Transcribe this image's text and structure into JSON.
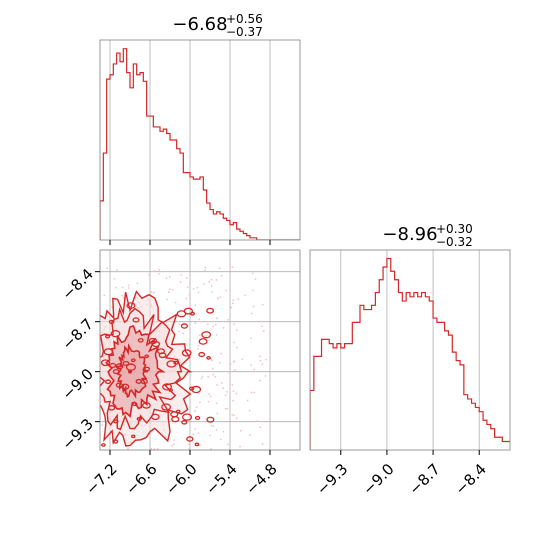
{
  "colors": {
    "series": "#d62728",
    "contour_fill_dark": "#e8a3a4",
    "contour_fill_light": "#f6dede",
    "scatter": "#f0c4c4",
    "grid": "#b0b0b0",
    "axes": "#808080"
  },
  "chart_data": [
    {
      "type": "histogram",
      "panel": "top-left",
      "title": {
        "value": "−6.68",
        "plus": "+0.56",
        "minus": "−0.37"
      },
      "xlim": [
        -7.35,
        -4.35
      ],
      "xticks": [
        -7.2,
        -6.6,
        -6.0,
        -5.4,
        -4.8
      ],
      "xtick_labels_shown": false,
      "grid": true,
      "bin_edges": [
        -7.35,
        -7.3,
        -7.25,
        -7.2,
        -7.15,
        -7.1,
        -7.05,
        -7.0,
        -6.95,
        -6.9,
        -6.85,
        -6.8,
        -6.75,
        -6.7,
        -6.65,
        -6.6,
        -6.55,
        -6.5,
        -6.45,
        -6.4,
        -6.35,
        -6.3,
        -6.25,
        -6.2,
        -6.15,
        -6.1,
        -6.05,
        -6.0,
        -5.95,
        -5.9,
        -5.85,
        -5.8,
        -5.75,
        -5.7,
        -5.65,
        -5.6,
        -5.55,
        -5.5,
        -5.45,
        -5.4,
        -5.35,
        -5.3,
        -5.25,
        -5.2,
        -5.15,
        -5.1,
        -5.05,
        -5.0,
        -4.95,
        -4.9,
        -4.85,
        -4.8,
        -4.75,
        -4.7,
        -4.65,
        -4.6,
        -4.55,
        -4.5,
        -4.45,
        -4.4,
        -4.35
      ],
      "counts": [
        18,
        40,
        74,
        76,
        81,
        86,
        82,
        88,
        77,
        70,
        81,
        76,
        77,
        73,
        57,
        57,
        52,
        52,
        50,
        51,
        49,
        46,
        46,
        42,
        40,
        31,
        31,
        29,
        28,
        28,
        29,
        23,
        17,
        14,
        12,
        13,
        12,
        10,
        9,
        7,
        8,
        5,
        4,
        3,
        2,
        1,
        1,
        0,
        0,
        0,
        0,
        0,
        0,
        0,
        0,
        0,
        0,
        0,
        0,
        0
      ],
      "ymax": 92
    },
    {
      "type": "contour",
      "panel": "bottom-left",
      "xlim": [
        -7.35,
        -4.35
      ],
      "ylim": [
        -9.47,
        -8.27
      ],
      "xticks": [
        -7.2,
        -6.6,
        -6.0,
        -5.4,
        -4.8
      ],
      "xtick_labels": [
        "−7.2",
        "−6.6",
        "−6.0",
        "−5.4",
        "−4.8"
      ],
      "yticks": [
        -8.4,
        -8.7,
        -9.0,
        -9.3
      ],
      "ytick_labels": [
        "−8.4",
        "−8.7",
        "−9.0",
        "−9.3"
      ],
      "grid": true,
      "density_peak": {
        "x": -6.9,
        "y": -9.0
      },
      "contour_extent": {
        "x": [
          -7.35,
          -5.55
        ],
        "y": [
          -9.47,
          -8.55
        ]
      }
    },
    {
      "type": "histogram",
      "panel": "bottom-right",
      "title": {
        "value": "−8.96",
        "plus": "+0.30",
        "minus": "−0.32"
      },
      "xlim": [
        -9.5,
        -8.2
      ],
      "xticks": [
        -9.3,
        -9.0,
        -8.7,
        -8.4
      ],
      "xtick_labels": [
        "−9.3",
        "−9.0",
        "−8.7",
        "−8.4"
      ],
      "grid": true,
      "bin_edges": [
        -9.5,
        -9.475,
        -9.45,
        -9.425,
        -9.4,
        -9.375,
        -9.35,
        -9.325,
        -9.3,
        -9.275,
        -9.25,
        -9.225,
        -9.2,
        -9.175,
        -9.15,
        -9.125,
        -9.1,
        -9.075,
        -9.05,
        -9.025,
        -9.0,
        -8.975,
        -8.95,
        -8.925,
        -8.9,
        -8.875,
        -8.85,
        -8.825,
        -8.8,
        -8.775,
        -8.75,
        -8.725,
        -8.7,
        -8.675,
        -8.65,
        -8.625,
        -8.6,
        -8.575,
        -8.55,
        -8.525,
        -8.5,
        -8.475,
        -8.45,
        -8.425,
        -8.4,
        -8.375,
        -8.35,
        -8.325,
        -8.3,
        -8.275,
        -8.25,
        -8.225,
        -8.2
      ],
      "counts": [
        14,
        22,
        22,
        26,
        26,
        25,
        24,
        25,
        24,
        25,
        25,
        30,
        30,
        34,
        33,
        33,
        34,
        37,
        40,
        43,
        45,
        42,
        40,
        37,
        35,
        37,
        36,
        37,
        36,
        37,
        36,
        35,
        31,
        30,
        30,
        28,
        27,
        23,
        21,
        20,
        13,
        12,
        11,
        10,
        9,
        7,
        6,
        5,
        3,
        3,
        2,
        2
      ],
      "ymax": 47
    }
  ]
}
